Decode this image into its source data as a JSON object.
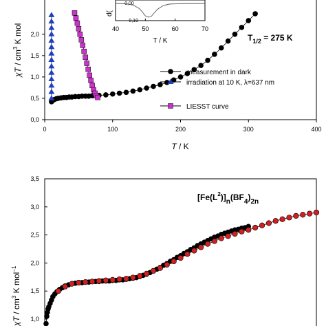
{
  "chart_data": [
    {
      "type": "scatter",
      "xlabel_var": "T",
      "xlabel_unit": " / K",
      "ylabel_var": "χT",
      "ylabel_unit": " / cm",
      "ylabel_sup": "3",
      "ylabel_tail": " K mol",
      "xlim": [
        0,
        400
      ],
      "ylim": [
        0,
        2.5
      ],
      "x_ticks": [
        "0",
        "100",
        "200",
        "300",
        "400"
      ],
      "y_ticks": [
        "0,0",
        "0,5",
        "1,0",
        "1,5",
        "2,0"
      ],
      "grid": false,
      "legend_position": "bottom-right",
      "annotation": {
        "base": "T",
        "sub": "1/2",
        "tail": " = 275 K"
      },
      "series": [
        {
          "name": "measurement in dark",
          "color": "#000000",
          "marker": "circle",
          "x": [
            10,
            12,
            14,
            17,
            20,
            24,
            28,
            32,
            36,
            40,
            45,
            50,
            55,
            60,
            65,
            70,
            75,
            80,
            90,
            100,
            110,
            120,
            130,
            140,
            150,
            160,
            170,
            180,
            190,
            200,
            210,
            220,
            230,
            240,
            250,
            260,
            270,
            280,
            290,
            300,
            310
          ],
          "y": [
            0.42,
            0.45,
            0.47,
            0.49,
            0.5,
            0.51,
            0.52,
            0.52,
            0.53,
            0.53,
            0.54,
            0.54,
            0.55,
            0.55,
            0.55,
            0.56,
            0.56,
            0.57,
            0.58,
            0.6,
            0.62,
            0.64,
            0.67,
            0.7,
            0.74,
            0.78,
            0.82,
            0.87,
            0.93,
            1.0,
            1.08,
            1.17,
            1.27,
            1.39,
            1.53,
            1.68,
            1.84,
            2.0,
            2.16,
            2.32,
            2.48
          ]
        },
        {
          "name": "irradiation at 10 K, λ=637 nm",
          "color": "#1f3fbf",
          "marker": "triangle",
          "x": [
            10,
            10,
            10,
            10,
            10,
            10,
            10,
            10,
            10,
            10,
            10,
            10,
            10,
            10
          ],
          "y": [
            0.5,
            0.65,
            0.8,
            0.95,
            1.1,
            1.25,
            1.4,
            1.55,
            1.7,
            1.85,
            2.0,
            2.15,
            2.3,
            2.45
          ]
        },
        {
          "name": "LIESST curve",
          "color": "#cc33cc",
          "marker": "square",
          "x": [
            44,
            46,
            48,
            50,
            52,
            54,
            56,
            58,
            60,
            62,
            64,
            66,
            68,
            70,
            72,
            74,
            76,
            78
          ],
          "y": [
            2.5,
            2.38,
            2.26,
            2.13,
            2.0,
            1.87,
            1.74,
            1.6,
            1.46,
            1.32,
            1.18,
            1.04,
            0.92,
            0.8,
            0.7,
            0.62,
            0.56,
            0.52
          ]
        }
      ]
    },
    {
      "type": "line",
      "inset": true,
      "xlabel": "T / K",
      "ylabel_fragment": "d(",
      "xlim": [
        40,
        70
      ],
      "ylim": [
        -0.1,
        0.1
      ],
      "x_ticks": [
        "40",
        "50",
        "60",
        "70"
      ],
      "y_ticks": [
        "-0,10",
        "0,00"
      ],
      "series": [
        {
          "color": "#555555",
          "x": [
            40,
            44,
            46,
            48,
            49,
            50,
            51,
            52,
            53,
            54,
            56,
            58,
            62,
            70
          ],
          "y": [
            0.0,
            -0.003,
            -0.01,
            -0.03,
            -0.05,
            -0.072,
            -0.08,
            -0.075,
            -0.055,
            -0.035,
            -0.012,
            -0.004,
            -0.001,
            0.0
          ]
        }
      ]
    },
    {
      "type": "scatter",
      "title_parts": [
        "[Fe(L",
        "2",
        ")]",
        "n",
        "(BF",
        "4",
        ")",
        "2n"
      ],
      "ylabel_var": "χT",
      "ylabel_unit": " / cm",
      "ylabel_sup": "3",
      "ylabel_tail": " K mol",
      "ylabel_sup2": "−1",
      "xlim": [
        0,
        400
      ],
      "ylim": [
        0.88,
        3.5
      ],
      "y_ticks": [
        "1,0",
        "1,5",
        "2,0",
        "2,5",
        "3,0",
        "3,5"
      ],
      "grid": false,
      "series": [
        {
          "color": "#000000",
          "marker": "circle",
          "x": [
            2,
            3,
            4,
            5,
            6,
            8,
            10,
            12,
            15,
            18,
            22,
            26,
            30,
            35,
            40,
            45,
            50,
            55,
            60,
            65,
            70,
            75,
            80,
            85,
            90,
            95,
            100,
            105,
            110,
            115,
            120,
            125,
            130,
            135,
            140,
            145,
            150,
            155,
            160,
            165,
            170,
            175,
            180,
            185,
            190,
            195,
            200,
            205,
            210,
            215,
            220,
            225,
            230,
            235,
            240,
            245,
            250,
            255,
            260,
            265,
            270,
            275,
            280,
            285,
            290,
            295,
            300
          ],
          "y": [
            0.92,
            1.05,
            1.12,
            1.18,
            1.22,
            1.28,
            1.34,
            1.4,
            1.45,
            1.49,
            1.53,
            1.56,
            1.59,
            1.61,
            1.63,
            1.64,
            1.65,
            1.65,
            1.66,
            1.66,
            1.67,
            1.67,
            1.67,
            1.68,
            1.68,
            1.68,
            1.69,
            1.69,
            1.7,
            1.7,
            1.71,
            1.72,
            1.73,
            1.74,
            1.76,
            1.78,
            1.8,
            1.83,
            1.86,
            1.89,
            1.92,
            1.96,
            1.99,
            2.03,
            2.06,
            2.1,
            2.13,
            2.17,
            2.2,
            2.24,
            2.27,
            2.31,
            2.34,
            2.37,
            2.4,
            2.43,
            2.46,
            2.48,
            2.51,
            2.53,
            2.55,
            2.57,
            2.59,
            2.6,
            2.62,
            2.63,
            2.65
          ]
        },
        {
          "color": "#d21f1f",
          "marker": "circle",
          "x": [
            20,
            30,
            40,
            50,
            60,
            70,
            80,
            90,
            100,
            110,
            120,
            130,
            140,
            150,
            160,
            170,
            180,
            190,
            200,
            210,
            220,
            230,
            240,
            250,
            260,
            270,
            280,
            290,
            300,
            310,
            320,
            330,
            340,
            350,
            360,
            370,
            380,
            390,
            400
          ],
          "y": [
            1.5,
            1.58,
            1.63,
            1.65,
            1.66,
            1.67,
            1.68,
            1.69,
            1.7,
            1.71,
            1.72,
            1.74,
            1.77,
            1.81,
            1.86,
            1.91,
            1.97,
            2.03,
            2.09,
            2.16,
            2.22,
            2.28,
            2.34,
            2.39,
            2.44,
            2.48,
            2.52,
            2.56,
            2.59,
            2.63,
            2.67,
            2.71,
            2.75,
            2.78,
            2.81,
            2.84,
            2.86,
            2.88,
            2.9
          ]
        }
      ]
    }
  ]
}
